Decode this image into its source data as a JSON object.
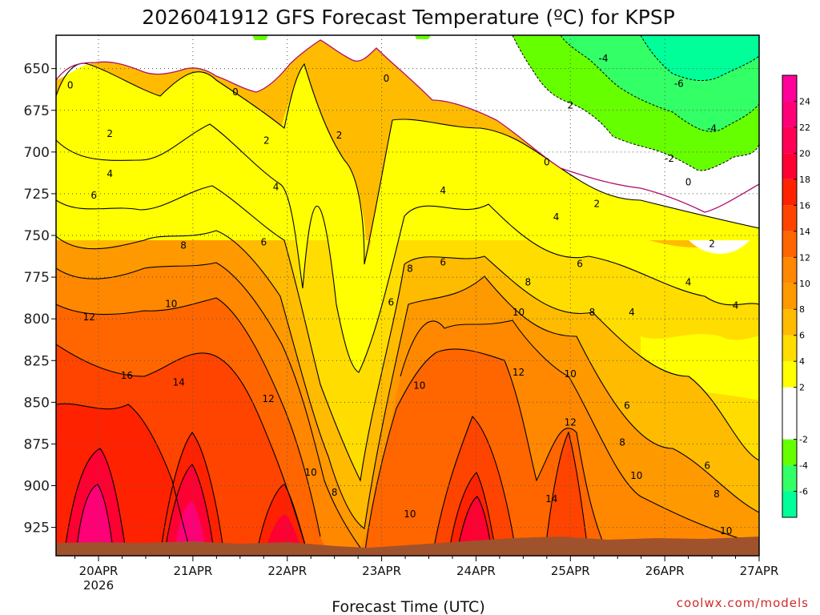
{
  "chart_data": {
    "type": "heatmap",
    "title": "2026041912 GFS Forecast Temperature (ºC) for KPSP",
    "xlabel": "Forecast Time (UTC)",
    "ylabel": "",
    "x_ticks": [
      "20APR",
      "21APR",
      "22APR",
      "23APR",
      "24APR",
      "25APR",
      "26APR",
      "27APR"
    ],
    "x_year": "2026",
    "x_day_range": [
      -0.45,
      7.0
    ],
    "y_ticks": [
      650,
      675,
      700,
      725,
      750,
      775,
      800,
      825,
      850,
      875,
      900,
      925
    ],
    "y_range_hpa": [
      630,
      942
    ],
    "colorbar_ticks": [
      24,
      22,
      20,
      18,
      16,
      14,
      12,
      10,
      8,
      6,
      4,
      2,
      -2,
      -4,
      -6
    ],
    "colorbar_bins": [
      {
        "min": -8,
        "max": -6,
        "color": "#00ff99"
      },
      {
        "min": -6,
        "max": -4,
        "color": "#33ff66"
      },
      {
        "min": -4,
        "max": -2,
        "color": "#66ff00"
      },
      {
        "min": -2,
        "max": 2,
        "color": "#ffffff"
      },
      {
        "min": 2,
        "max": 4,
        "color": "#ffff00"
      },
      {
        "min": 4,
        "max": 6,
        "color": "#ffdd00"
      },
      {
        "min": 6,
        "max": 8,
        "color": "#ffbb00"
      },
      {
        "min": 8,
        "max": 10,
        "color": "#ff9900"
      },
      {
        "min": 10,
        "max": 12,
        "color": "#ff8800"
      },
      {
        "min": 12,
        "max": 14,
        "color": "#ff6600"
      },
      {
        "min": 14,
        "max": 16,
        "color": "#ff4400"
      },
      {
        "min": 16,
        "max": 18,
        "color": "#ff2200"
      },
      {
        "min": 18,
        "max": 20,
        "color": "#ff0033"
      },
      {
        "min": 20,
        "max": 22,
        "color": "#ff0055"
      },
      {
        "min": 22,
        "max": 24,
        "color": "#ff0077"
      },
      {
        "min": 24,
        "max": 26,
        "color": "#ff0099"
      }
    ],
    "contour_labels": [
      {
        "text": "0",
        "day": -0.3,
        "p": 660
      },
      {
        "text": "0",
        "day": 1.45,
        "p": 664
      },
      {
        "text": "0",
        "day": 3.05,
        "p": 656
      },
      {
        "text": "0",
        "day": 4.75,
        "p": 706
      },
      {
        "text": "0",
        "day": 6.25,
        "p": 718
      },
      {
        "text": "-4",
        "day": 5.35,
        "p": 644
      },
      {
        "text": "-6",
        "day": 6.15,
        "p": 659
      },
      {
        "text": "-4",
        "day": 6.5,
        "p": 686
      },
      {
        "text": "-2",
        "day": 6.05,
        "p": 704
      },
      {
        "text": "2",
        "day": 0.12,
        "p": 689
      },
      {
        "text": "2",
        "day": 1.78,
        "p": 693
      },
      {
        "text": "2",
        "day": 2.55,
        "p": 690
      },
      {
        "text": "2",
        "day": 5.0,
        "p": 672
      },
      {
        "text": "2",
        "day": 5.28,
        "p": 731
      },
      {
        "text": "2",
        "day": 6.5,
        "p": 755
      },
      {
        "text": "4",
        "day": 0.12,
        "p": 713
      },
      {
        "text": "4",
        "day": 1.88,
        "p": 721
      },
      {
        "text": "4",
        "day": 3.65,
        "p": 723
      },
      {
        "text": "4",
        "day": 4.85,
        "p": 739
      },
      {
        "text": "4",
        "day": 6.25,
        "p": 778
      },
      {
        "text": "4",
        "day": 6.75,
        "p": 792
      },
      {
        "text": "4",
        "day": 5.65,
        "p": 796
      },
      {
        "text": "6",
        "day": -0.05,
        "p": 726
      },
      {
        "text": "6",
        "day": 1.75,
        "p": 754
      },
      {
        "text": "6",
        "day": 3.65,
        "p": 766
      },
      {
        "text": "6",
        "day": 5.1,
        "p": 767
      },
      {
        "text": "6",
        "day": 3.1,
        "p": 790
      },
      {
        "text": "6",
        "day": 5.6,
        "p": 852
      },
      {
        "text": "6",
        "day": 6.45,
        "p": 888
      },
      {
        "text": "8",
        "day": 0.9,
        "p": 756
      },
      {
        "text": "8",
        "day": 3.3,
        "p": 770
      },
      {
        "text": "8",
        "day": 4.55,
        "p": 778
      },
      {
        "text": "8",
        "day": 5.23,
        "p": 796
      },
      {
        "text": "8",
        "day": 2.5,
        "p": 904
      },
      {
        "text": "8",
        "day": 5.55,
        "p": 874
      },
      {
        "text": "8",
        "day": 6.55,
        "p": 905
      },
      {
        "text": "10",
        "day": 0.77,
        "p": 791
      },
      {
        "text": "10",
        "day": 4.45,
        "p": 796
      },
      {
        "text": "10",
        "day": 3.4,
        "p": 840
      },
      {
        "text": "10",
        "day": 5.0,
        "p": 833
      },
      {
        "text": "10",
        "day": 5.7,
        "p": 894
      },
      {
        "text": "10",
        "day": 2.25,
        "p": 892
      },
      {
        "text": "10",
        "day": 3.3,
        "p": 917
      },
      {
        "text": "10",
        "day": 6.65,
        "p": 927
      },
      {
        "text": "12",
        "day": -0.1,
        "p": 799
      },
      {
        "text": "12",
        "day": 1.8,
        "p": 848
      },
      {
        "text": "12",
        "day": 4.45,
        "p": 832
      },
      {
        "text": "12",
        "day": 5.0,
        "p": 862
      },
      {
        "text": "14",
        "day": 0.85,
        "p": 838
      },
      {
        "text": "14",
        "day": 4.8,
        "p": 908
      },
      {
        "text": "16",
        "day": 0.3,
        "p": 834
      }
    ]
  },
  "credit": "coolwx.com/models"
}
